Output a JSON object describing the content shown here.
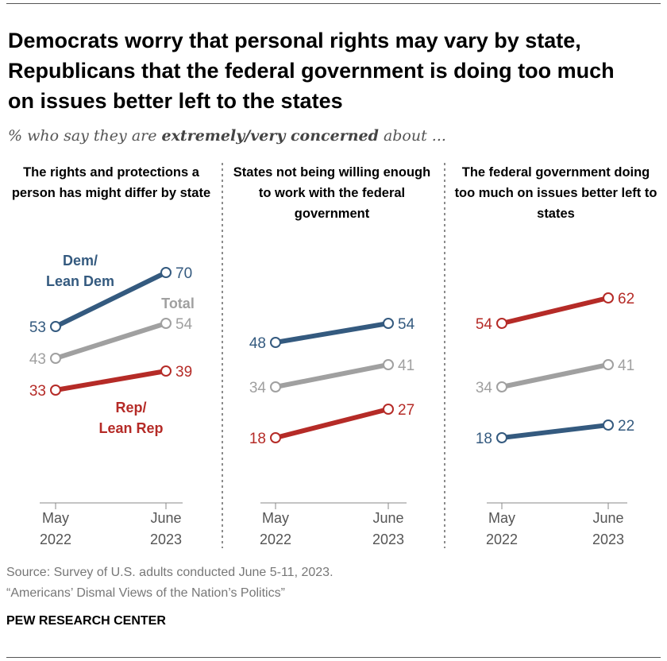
{
  "title": "Democrats worry that personal rights may vary by state, Republicans that the federal government is doing too much on issues better left to the states",
  "subtitle": {
    "pre": "% who say they are ",
    "bold": "extremely/very concerned",
    "post": " about ..."
  },
  "colors": {
    "dem": "#345a7f",
    "rep": "#b52b27",
    "total": "#a0a0a0"
  },
  "chart_data": [
    {
      "type": "line",
      "title": "The rights and protections a person has might differ by state",
      "categories": [
        "May 2022",
        "June 2023"
      ],
      "series": [
        {
          "name": "Dem/Lean Dem",
          "key": "dem",
          "values": [
            53,
            70
          ]
        },
        {
          "name": "Total",
          "key": "total",
          "values": [
            43,
            54
          ]
        },
        {
          "name": "Rep/Lean Rep",
          "key": "rep",
          "values": [
            33,
            39
          ]
        }
      ]
    },
    {
      "type": "line",
      "title": "States not being willing enough to work with the federal government",
      "categories": [
        "May 2022",
        "June 2023"
      ],
      "series": [
        {
          "key": "dem",
          "values": [
            48,
            54
          ]
        },
        {
          "key": "total",
          "values": [
            34,
            41
          ]
        },
        {
          "key": "rep",
          "values": [
            18,
            27
          ]
        }
      ]
    },
    {
      "type": "line",
      "title": "The federal government doing too much on issues better left to states",
      "categories": [
        "May 2022",
        "June 2023"
      ],
      "series": [
        {
          "key": "rep",
          "values": [
            54,
            62
          ]
        },
        {
          "key": "total",
          "values": [
            34,
            41
          ]
        },
        {
          "key": "dem",
          "values": [
            18,
            22
          ]
        }
      ]
    }
  ],
  "xticks": [
    [
      "May",
      "2022"
    ],
    [
      "June",
      "2023"
    ]
  ],
  "source": "Source: Survey of U.S. adults conducted June 5-11, 2023.",
  "report": "“Americans’ Dismal Views of the Nation’s Politics”",
  "brand": "PEW RESEARCH CENTER"
}
